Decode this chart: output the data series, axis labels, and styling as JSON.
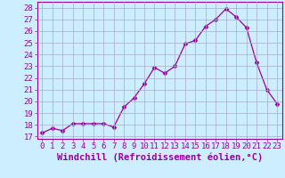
{
  "x": [
    0,
    1,
    2,
    3,
    4,
    5,
    6,
    7,
    8,
    9,
    10,
    11,
    12,
    13,
    14,
    15,
    16,
    17,
    18,
    19,
    20,
    21,
    22,
    23
  ],
  "y": [
    17.3,
    17.7,
    17.5,
    18.1,
    18.1,
    18.1,
    18.1,
    17.8,
    19.5,
    20.3,
    21.5,
    22.9,
    22.4,
    23.0,
    24.9,
    25.2,
    26.4,
    27.0,
    27.9,
    27.2,
    26.3,
    23.3,
    21.0,
    19.8
  ],
  "line_color": "#990099",
  "marker": "D",
  "marker_size": 2.5,
  "xlim": [
    -0.5,
    23.5
  ],
  "ylim": [
    16.8,
    28.5
  ],
  "yticks": [
    17,
    18,
    19,
    20,
    21,
    22,
    23,
    24,
    25,
    26,
    27,
    28
  ],
  "xticks": [
    0,
    1,
    2,
    3,
    4,
    5,
    6,
    7,
    8,
    9,
    10,
    11,
    12,
    13,
    14,
    15,
    16,
    17,
    18,
    19,
    20,
    21,
    22,
    23
  ],
  "xlabel": "Windchill (Refroidissement éolien,°C)",
  "background_color": "#cceeff",
  "grid_color": "#aaaacc",
  "line_purple": "#880088",
  "font_size_tick": 6.5,
  "font_size_label": 7.5
}
